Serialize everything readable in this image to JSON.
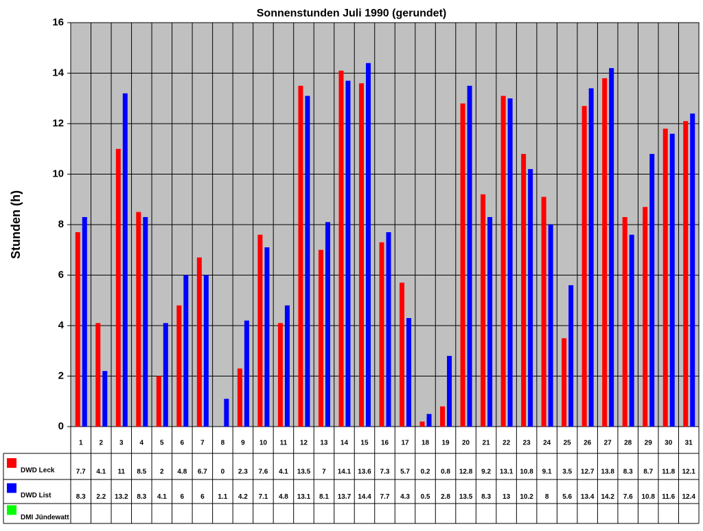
{
  "chart_data": {
    "type": "bar",
    "title": "Sonnenstunden Juli 1990 (gerundet)",
    "y_label": "Stunden (h)",
    "categories": [
      "1",
      "2",
      "3",
      "4",
      "5",
      "6",
      "7",
      "8",
      "9",
      "10",
      "11",
      "12",
      "13",
      "14",
      "15",
      "16",
      "17",
      "18",
      "19",
      "20",
      "21",
      "22",
      "23",
      "24",
      "25",
      "26",
      "27",
      "28",
      "29",
      "30",
      "31"
    ],
    "series": [
      {
        "name": "DWD Leck",
        "color": "#ff0000",
        "values": [
          7.7,
          4.1,
          11,
          8.5,
          2,
          4.8,
          6.7,
          0,
          2.3,
          7.6,
          4.1,
          13.5,
          7,
          14.1,
          13.6,
          7.3,
          5.7,
          0.2,
          0.8,
          12.8,
          9.2,
          13.1,
          10.8,
          9.1,
          3.5,
          12.7,
          13.8,
          8.3,
          8.7,
          11.8,
          12.1
        ]
      },
      {
        "name": "DWD List",
        "color": "#0000ff",
        "values": [
          8.3,
          2.2,
          13.2,
          8.3,
          4.1,
          6,
          6,
          1.1,
          4.2,
          7.1,
          4.8,
          13.1,
          8.1,
          13.7,
          14.4,
          7.7,
          4.3,
          0.5,
          2.8,
          13.5,
          8.3,
          13,
          10.2,
          8,
          5.6,
          13.4,
          14.2,
          7.6,
          10.8,
          11.6,
          12.4
        ]
      },
      {
        "name": "DMI Jündewatt",
        "color": "#00ff00",
        "values": [
          null,
          null,
          null,
          null,
          null,
          null,
          null,
          null,
          null,
          null,
          null,
          null,
          null,
          null,
          null,
          null,
          null,
          null,
          null,
          null,
          null,
          null,
          null,
          null,
          null,
          null,
          null,
          null,
          null,
          null,
          null
        ]
      }
    ],
    "ylim": [
      0,
      16
    ],
    "yticks": [
      0,
      2,
      4,
      6,
      8,
      10,
      12,
      14,
      16
    ],
    "grid": true
  }
}
